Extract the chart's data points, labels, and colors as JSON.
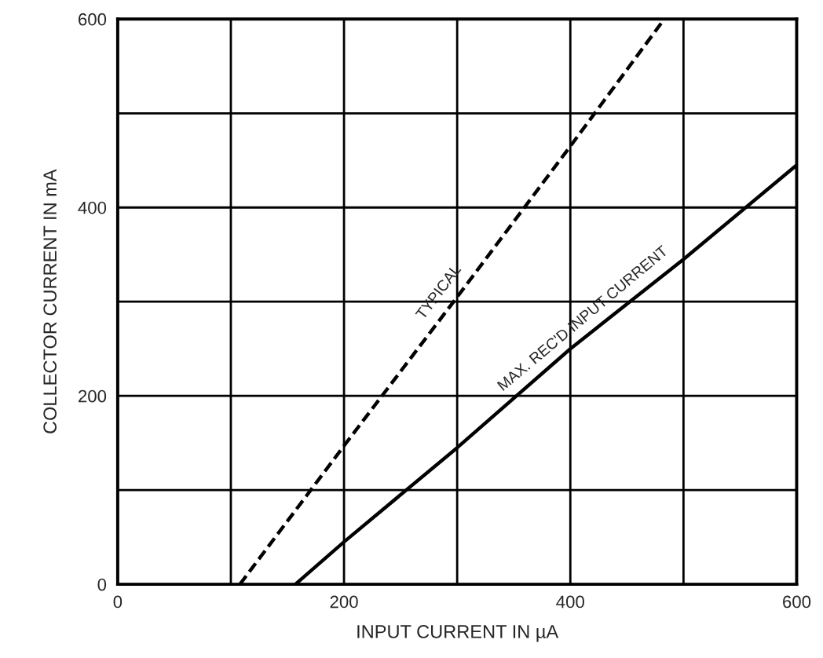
{
  "chart_data": {
    "type": "line",
    "xlabel": "INPUT CURRENT IN µA",
    "ylabel": "COLLECTOR CURRENT IN mA",
    "series": [
      {
        "x": [
          108,
          200,
          300,
          400,
          483
        ],
        "values": [
          0,
          147,
          305,
          465,
          600
        ],
        "color": "#000000",
        "line_style": "dashed"
      },
      {
        "x": [
          157,
          200,
          300,
          400,
          500,
          600
        ],
        "values": [
          0,
          45,
          145,
          250,
          345,
          445
        ],
        "color": "#000000",
        "line_style": "solid"
      }
    ],
    "annotations": [
      {
        "text": "TYPICAL",
        "x": 295,
        "y": 300
      },
      {
        "text": "MAX. REC'D INPUT CURRENT",
        "x": 420,
        "y": 269
      }
    ],
    "xlim": [
      0,
      600
    ],
    "ylim": [
      0,
      600
    ],
    "xticks": [
      0,
      {
        "value": 100,
        "label": null
      },
      200,
      {
        "value": 300,
        "label": null
      },
      400,
      {
        "value": 500,
        "label": null
      },
      600
    ],
    "yticks": [
      0,
      {
        "value": 100,
        "label": null
      },
      200,
      {
        "value": 300,
        "label": null
      },
      400,
      {
        "value": 500,
        "label": null
      },
      600
    ],
    "grid": true,
    "marker": "none"
  }
}
